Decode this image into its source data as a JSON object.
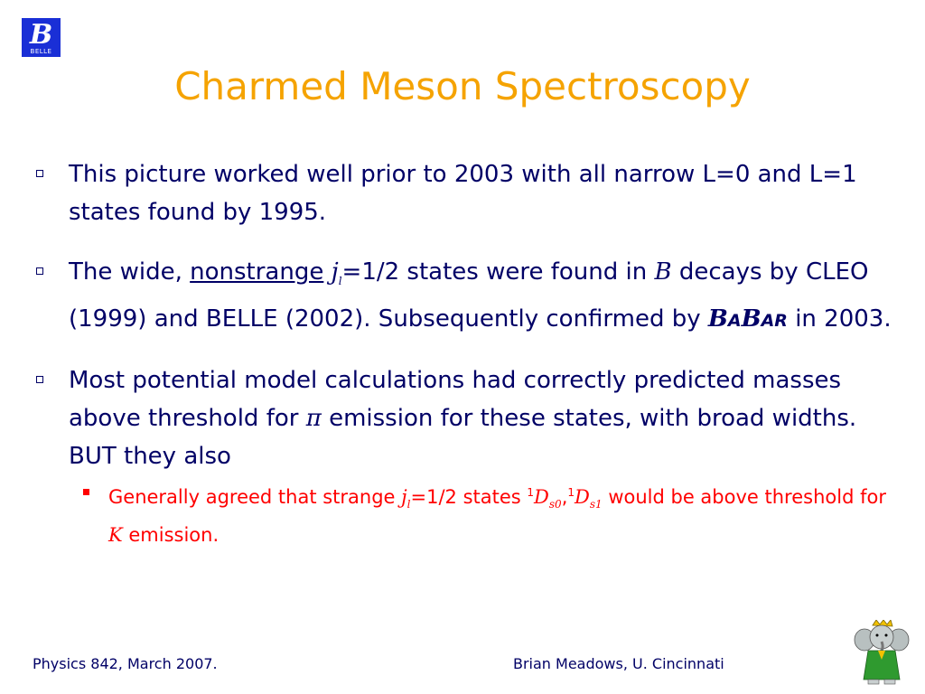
{
  "logo": {
    "glyph": "B",
    "text": "BELLE"
  },
  "title": "Charmed Meson Spectroscopy",
  "bullets": [
    {
      "text": "This picture worked well prior to 2003 with all narrow L=0 and L=1 states found by 1995."
    },
    {
      "t1": "The wide, ",
      "underlined": "nonstrange",
      "j": "j",
      "l": "l",
      "t2": "=1/2 states were found in ",
      "b": "B",
      "t3": " decays by CLEO (1999) and BELLE (2002).  Subsequently confirmed by ",
      "babar": {
        "b1": "B",
        "a1": "A",
        "b2": "B",
        "ar": "AR"
      },
      "t4": " in 2003."
    },
    {
      "t1": "Most potential model calculations had correctly predicted masses above threshold for ",
      "pi": "π",
      "t2": " emission for these states, with broad widths.  BUT they also"
    }
  ],
  "sub_bullet": {
    "t1": "Generally agreed that strange  ",
    "j": "j",
    "l": "l",
    "t2": "=1/2 states ",
    "sup1": "1",
    "d1": "D",
    "sub1": "s0",
    "comma": ",",
    "sup2": "1",
    "d2": "D",
    "sub2": "s1",
    "t3": " would be above threshold for ",
    "k": "K",
    "t4": " emission."
  },
  "footer": {
    "left": "Physics 842, March 2007.",
    "right": "Brian Meadows, U. Cincinnati"
  },
  "colors": {
    "title": "#f5a300",
    "body_text": "#000066",
    "sub_text": "#ff0000",
    "logo_bg": "#1a2fd6"
  },
  "icons": {
    "logo": "belle-logo-icon",
    "mascot": "babar-elephant-icon"
  }
}
